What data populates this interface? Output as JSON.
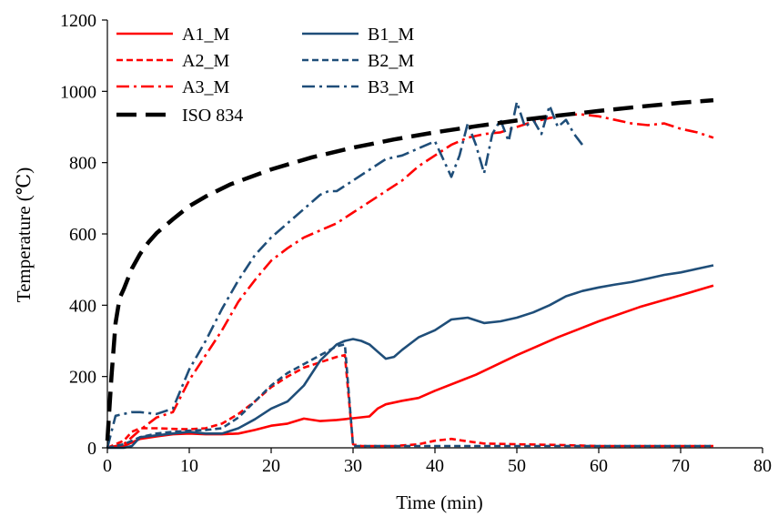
{
  "chart_data": {
    "type": "line",
    "xlabel": "Time (min)",
    "ylabel": "Temperature (℃)",
    "xlim": [
      0,
      80
    ],
    "ylim": [
      0,
      1200
    ],
    "x_ticks": [
      0,
      10,
      20,
      30,
      40,
      50,
      60,
      70,
      80
    ],
    "y_ticks": [
      0,
      200,
      400,
      600,
      800,
      1000,
      1200
    ],
    "x_tick_labels": [
      "0",
      "10",
      "20",
      "30",
      "40",
      "50",
      "60",
      "70",
      "80"
    ],
    "y_tick_labels": [
      "0",
      "200",
      "400",
      "600",
      "800",
      "1000",
      "1200"
    ],
    "grid": false,
    "legend_position": "top-left",
    "series": [
      {
        "name": "A1_M",
        "color": "#ff0000",
        "style": "solid",
        "x": [
          0,
          2,
          4,
          6,
          8,
          10,
          12,
          14,
          16,
          18,
          20,
          22,
          24,
          26,
          28,
          30,
          32,
          33,
          34,
          36,
          38,
          40,
          45,
          50,
          55,
          60,
          65,
          70,
          74
        ],
        "y": [
          0,
          5,
          25,
          32,
          38,
          40,
          38,
          38,
          40,
          50,
          62,
          68,
          82,
          75,
          78,
          83,
          88,
          110,
          122,
          132,
          140,
          160,
          205,
          260,
          310,
          355,
          395,
          428,
          455
        ]
      },
      {
        "name": "A2_M",
        "color": "#ff0000",
        "style": "dash",
        "x": [
          0,
          2,
          3,
          4,
          6,
          8,
          10,
          12,
          14,
          16,
          18,
          20,
          22,
          24,
          26,
          28,
          29,
          30,
          31,
          35,
          38,
          40,
          42,
          44,
          46,
          50,
          55,
          60,
          65,
          70,
          74
        ],
        "y": [
          0,
          20,
          45,
          55,
          55,
          53,
          52,
          55,
          68,
          95,
          130,
          170,
          200,
          225,
          240,
          255,
          260,
          10,
          5,
          5,
          10,
          20,
          25,
          18,
          12,
          10,
          8,
          5,
          5,
          5,
          5
        ]
      },
      {
        "name": "A3_M",
        "color": "#ff0000",
        "style": "dashdot",
        "x": [
          0,
          2,
          4,
          6,
          8,
          10,
          12,
          14,
          16,
          18,
          20,
          22,
          24,
          26,
          28,
          30,
          32,
          34,
          36,
          38,
          40,
          42,
          44,
          46,
          48,
          50,
          52,
          54,
          56,
          58,
          60,
          62,
          64,
          66,
          68,
          70,
          72,
          74
        ],
        "y": [
          0,
          10,
          50,
          85,
          100,
          190,
          260,
          330,
          410,
          470,
          525,
          560,
          590,
          610,
          630,
          660,
          690,
          720,
          750,
          790,
          820,
          850,
          870,
          880,
          885,
          900,
          915,
          925,
          935,
          935,
          930,
          920,
          910,
          905,
          910,
          895,
          885,
          870
        ]
      },
      {
        "name": "B1_M",
        "color": "#1f4e79",
        "style": "solid",
        "x": [
          0,
          2,
          3,
          4,
          6,
          8,
          10,
          12,
          14,
          16,
          18,
          20,
          22,
          24,
          26,
          28,
          29,
          30,
          31,
          32,
          33,
          34,
          35,
          36,
          38,
          40,
          42,
          44,
          46,
          48,
          50,
          52,
          54,
          56,
          58,
          60,
          62,
          64,
          66,
          68,
          70,
          72,
          74
        ],
        "y": [
          0,
          0,
          5,
          30,
          35,
          40,
          45,
          40,
          40,
          55,
          80,
          110,
          130,
          175,
          245,
          290,
          300,
          305,
          300,
          290,
          270,
          250,
          255,
          275,
          310,
          330,
          360,
          365,
          350,
          355,
          365,
          380,
          400,
          425,
          440,
          450,
          458,
          465,
          475,
          485,
          492,
          502,
          512
        ]
      },
      {
        "name": "B2_M",
        "color": "#1f4e79",
        "style": "dash",
        "x": [
          0,
          2,
          4,
          6,
          8,
          10,
          12,
          14,
          16,
          18,
          20,
          22,
          24,
          26,
          28,
          29,
          30,
          31,
          35,
          40,
          45,
          50,
          60,
          70,
          74
        ],
        "y": [
          0,
          10,
          30,
          40,
          45,
          48,
          50,
          55,
          85,
          130,
          175,
          210,
          235,
          260,
          285,
          290,
          5,
          5,
          5,
          5,
          5,
          5,
          5,
          5,
          5
        ]
      },
      {
        "name": "B3_M",
        "color": "#1f4e79",
        "style": "dashdot",
        "x": [
          0,
          1,
          2,
          3,
          4,
          6,
          8,
          10,
          12,
          14,
          16,
          18,
          20,
          22,
          24,
          26,
          27,
          28,
          30,
          32,
          34,
          36,
          38,
          40,
          42,
          43,
          44,
          45,
          46,
          47,
          48,
          49,
          50,
          51,
          52,
          53,
          54,
          55,
          56,
          57,
          58
        ],
        "y": [
          0,
          90,
          95,
          100,
          100,
          95,
          110,
          220,
          300,
          390,
          470,
          540,
          590,
          630,
          670,
          710,
          720,
          720,
          750,
          780,
          810,
          820,
          840,
          860,
          760,
          820,
          910,
          850,
          770,
          880,
          920,
          860,
          970,
          900,
          920,
          880,
          960,
          900,
          920,
          880,
          850
        ]
      },
      {
        "name": "ISO 834",
        "color": "#000000",
        "style": "longdash",
        "x": [
          0,
          0.5,
          1,
          1.5,
          2,
          3,
          4,
          5,
          6,
          8,
          10,
          12,
          15,
          20,
          25,
          30,
          35,
          40,
          45,
          50,
          55,
          60,
          65,
          70,
          74
        ],
        "y": [
          20,
          200,
          350,
          420,
          445,
          503,
          544,
          576,
          602,
          641,
          678,
          705,
          739,
          781,
          815,
          842,
          865,
          885,
          902,
          918,
          932,
          945,
          957,
          968,
          975
        ]
      }
    ]
  }
}
